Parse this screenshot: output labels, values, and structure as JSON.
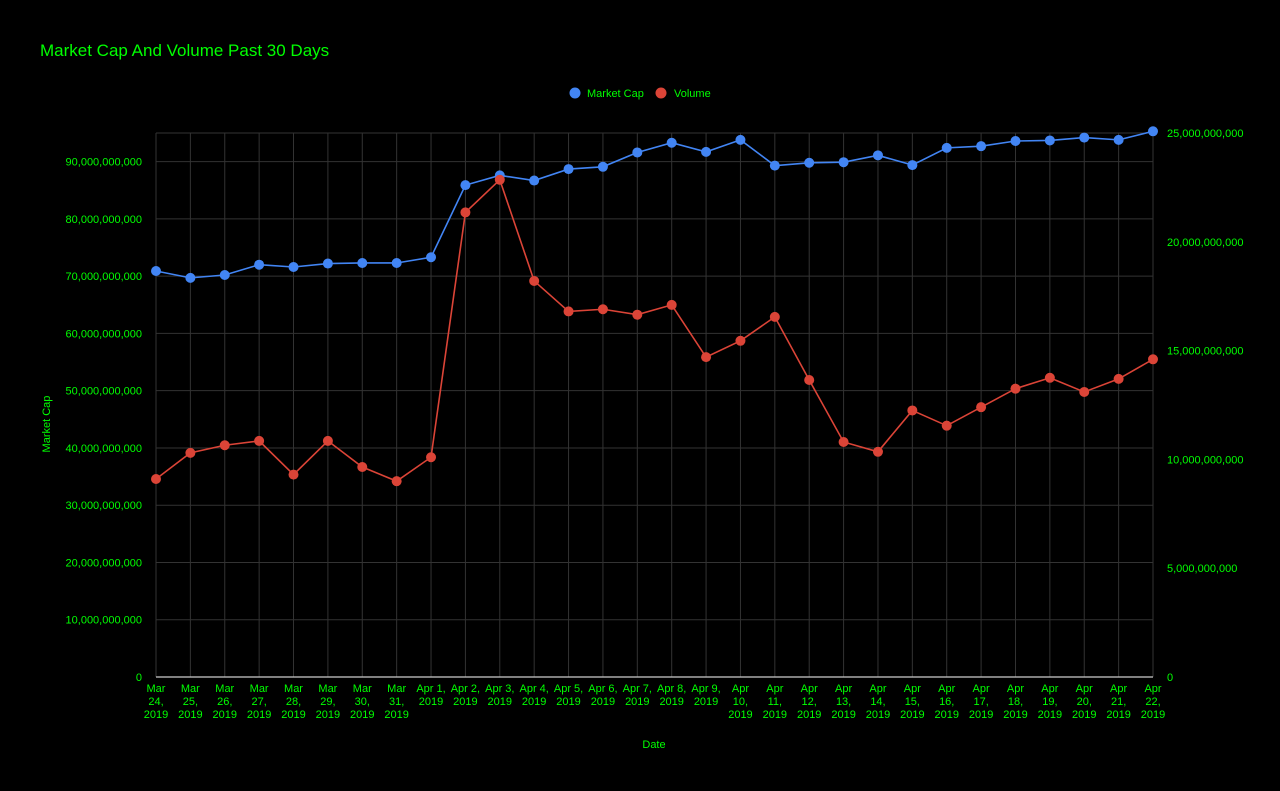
{
  "chart_data": {
    "type": "line",
    "title": "Market Cap And Volume Past 30 Days",
    "xlabel": "Date",
    "ylabel_left": "Market Cap",
    "ylabel_right": "",
    "categories": [
      [
        "Mar",
        "24,",
        "2019"
      ],
      [
        "Mar",
        "25,",
        "2019"
      ],
      [
        "Mar",
        "26,",
        "2019"
      ],
      [
        "Mar",
        "27,",
        "2019"
      ],
      [
        "Mar",
        "28,",
        "2019"
      ],
      [
        "Mar",
        "29,",
        "2019"
      ],
      [
        "Mar",
        "30,",
        "2019"
      ],
      [
        "Mar",
        "31,",
        "2019"
      ],
      [
        "Apr 1,",
        "2019"
      ],
      [
        "Apr 2,",
        "2019"
      ],
      [
        "Apr 3,",
        "2019"
      ],
      [
        "Apr 4,",
        "2019"
      ],
      [
        "Apr 5,",
        "2019"
      ],
      [
        "Apr 6,",
        "2019"
      ],
      [
        "Apr 7,",
        "2019"
      ],
      [
        "Apr 8,",
        "2019"
      ],
      [
        "Apr 9,",
        "2019"
      ],
      [
        "Apr",
        "10,",
        "2019"
      ],
      [
        "Apr",
        "11,",
        "2019"
      ],
      [
        "Apr",
        "12,",
        "2019"
      ],
      [
        "Apr",
        "13,",
        "2019"
      ],
      [
        "Apr",
        "14,",
        "2019"
      ],
      [
        "Apr",
        "15,",
        "2019"
      ],
      [
        "Apr",
        "16,",
        "2019"
      ],
      [
        "Apr",
        "17,",
        "2019"
      ],
      [
        "Apr",
        "18,",
        "2019"
      ],
      [
        "Apr",
        "19,",
        "2019"
      ],
      [
        "Apr",
        "20,",
        "2019"
      ],
      [
        "Apr",
        "21,",
        "2019"
      ],
      [
        "Apr",
        "22,",
        "2019"
      ]
    ],
    "series": [
      {
        "name": "Market Cap",
        "axis": "left",
        "color": "#4285f4",
        "values": [
          70900000000,
          69700000000,
          70200000000,
          72000000000,
          71600000000,
          72200000000,
          72300000000,
          72300000000,
          73300000000,
          85900000000,
          87600000000,
          86700000000,
          88700000000,
          89100000000,
          91600000000,
          93300000000,
          91700000000,
          93800000000,
          89300000000,
          89800000000,
          89900000000,
          91100000000,
          89400000000,
          92400000000,
          92700000000,
          93600000000,
          93700000000,
          94200000000,
          93800000000,
          95300000000
        ]
      },
      {
        "name": "Volume",
        "axis": "right",
        "color": "#db4437",
        "values": [
          9100000000,
          10300000000,
          10650000000,
          10850000000,
          9300000000,
          10850000000,
          9650000000,
          9000000000,
          10100000000,
          21350000000,
          22850000000,
          18200000000,
          16800000000,
          16900000000,
          16650000000,
          17100000000,
          14700000000,
          15450000000,
          16550000000,
          13650000000,
          10800000000,
          10350000000,
          12250000000,
          11550000000,
          12400000000,
          13250000000,
          13750000000,
          13100000000,
          13700000000,
          14600000000
        ]
      }
    ],
    "ylim_left": [
      0,
      95000000000
    ],
    "ylim_right": [
      0,
      25000000000
    ],
    "yticks_left": [
      "0",
      "10,000,000,000",
      "20,000,000,000",
      "30,000,000,000",
      "40,000,000,000",
      "50,000,000,000",
      "60,000,000,000",
      "70,000,000,000",
      "80,000,000,000",
      "90,000,000,000"
    ],
    "yticks_right": [
      "0",
      "5,000,000,000",
      "10,000,000,000",
      "15,000,000,000",
      "20,000,000,000",
      "25,000,000,000"
    ],
    "grid": true,
    "legend_position": "top-center",
    "colors": {
      "background": "#000000",
      "text": "#00ff00",
      "grid": "#333333"
    }
  }
}
